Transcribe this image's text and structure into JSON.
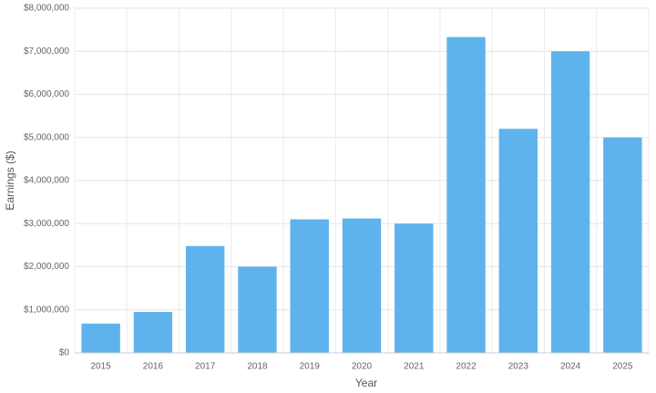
{
  "chart_data": {
    "type": "bar",
    "x_label": "Year",
    "y_label": "Earnings ($)",
    "categories": [
      "2015",
      "2016",
      "2017",
      "2018",
      "2019",
      "2020",
      "2021",
      "2022",
      "2023",
      "2024",
      "2025"
    ],
    "values": [
      680000,
      950000,
      2480000,
      2000000,
      3100000,
      3120000,
      3000000,
      7330000,
      5200000,
      7000000,
      5000000
    ],
    "color": "#5eb3ec",
    "ylim": [
      0,
      8000000
    ],
    "yticks": [
      {
        "value": 0,
        "label": "$0"
      },
      {
        "value": 1000000,
        "label": "$1,000,000"
      },
      {
        "value": 2000000,
        "label": "$2,000,000"
      },
      {
        "value": 3000000,
        "label": "$3,000,000"
      },
      {
        "value": 4000000,
        "label": "$4,000,000"
      },
      {
        "value": 5000000,
        "label": "$5,000,000"
      },
      {
        "value": 6000000,
        "label": "$6,000,000"
      },
      {
        "value": 7000000,
        "label": "$7,000,000"
      },
      {
        "value": 8000000,
        "label": "$8,000,000"
      }
    ],
    "grid": true
  }
}
